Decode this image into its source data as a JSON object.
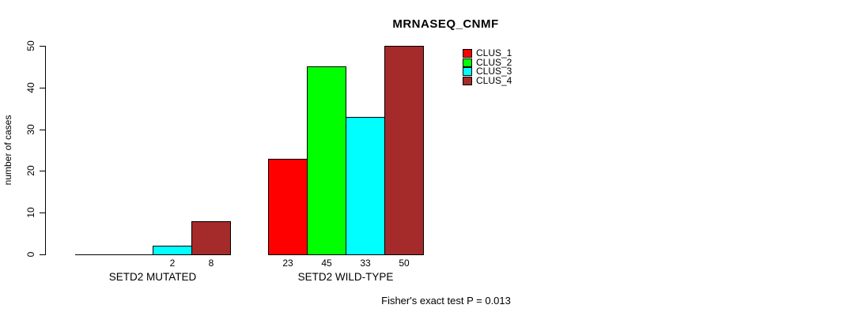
{
  "chart_data": {
    "type": "bar",
    "title": "MRNASEQ_CNMF",
    "ylabel": "number of cases",
    "xlabel": "",
    "ylim": [
      0,
      50
    ],
    "yticks": [
      0,
      10,
      20,
      30,
      40,
      50
    ],
    "grid": false,
    "legend_position": "top-right",
    "series": [
      {
        "name": "CLUS_1",
        "color": "#FF0000"
      },
      {
        "name": "CLUS_2",
        "color": "#00FF00"
      },
      {
        "name": "CLUS_3",
        "color": "#00FFFF"
      },
      {
        "name": "CLUS_4",
        "color": "#A52A2A"
      }
    ],
    "categories": [
      "SETD2 MUTATED",
      "SETD2 WILD-TYPE"
    ],
    "groups": [
      {
        "label": "SETD2 MUTATED",
        "values": [
          0,
          0,
          2,
          8
        ],
        "bar_labels": [
          "",
          "",
          "2",
          "8"
        ]
      },
      {
        "label": "SETD2 WILD-TYPE",
        "values": [
          23,
          45,
          33,
          50
        ],
        "bar_labels": [
          "23",
          "45",
          "33",
          "50"
        ]
      }
    ],
    "annotation": "Fisher's exact test P = 0.013"
  }
}
